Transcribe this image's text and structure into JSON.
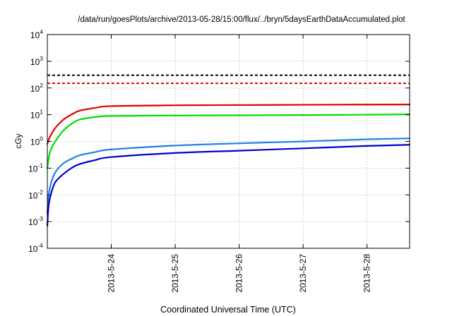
{
  "chart_data": {
    "type": "line",
    "title": "/data/run/goesPlots/archive/2013-05-28/15:00/flux/../bryn/5daysEarthDataAccumulated.plot",
    "xlabel": "Coordinated Universal Time (UTC)",
    "ylabel": "cGy",
    "y_scale": "log",
    "ylim": [
      0.0001,
      10000
    ],
    "xlim": [
      "2013-05-23 00:00",
      "2013-05-28 16:00"
    ],
    "x_ticks": [
      "2013-5-24",
      "2013-5-25",
      "2013-5-26",
      "2013-5-27",
      "2013-5-28"
    ],
    "y_ticks": [
      {
        "value": 0.0001,
        "base": "10",
        "exp": "-4"
      },
      {
        "value": 0.001,
        "base": "10",
        "exp": "-3"
      },
      {
        "value": 0.01,
        "base": "10",
        "exp": "-2"
      },
      {
        "value": 0.1,
        "base": "10",
        "exp": "-1"
      },
      {
        "value": 1,
        "base": "10",
        "exp": "0"
      },
      {
        "value": 10,
        "base": "10",
        "exp": "1"
      },
      {
        "value": 100,
        "base": "10",
        "exp": "2"
      },
      {
        "value": 1000,
        "base": "10",
        "exp": "3"
      },
      {
        "value": 10000,
        "base": "10",
        "exp": "4"
      }
    ],
    "grid": true,
    "legend": false,
    "reference_lines": [
      {
        "value": 300,
        "color": "#000000",
        "style": "dashed"
      },
      {
        "value": 150,
        "color": "#e00000",
        "style": "dashed"
      }
    ],
    "series": [
      {
        "color": "#e00000",
        "x": [
          "2013-05-23 00:00",
          "2013-05-23 01:00",
          "2013-05-23 03:00",
          "2013-05-23 06:00",
          "2013-05-23 09:00",
          "2013-05-23 12:00",
          "2013-05-23 18:00",
          "2013-05-24 00:00",
          "2013-05-25 00:00",
          "2013-05-26 00:00",
          "2013-05-27 00:00",
          "2013-05-28 00:00",
          "2013-05-28 16:00"
        ],
        "y": [
          0.8,
          1.5,
          3.2,
          6.5,
          10,
          14,
          18,
          21,
          22.5,
          23,
          23.5,
          24,
          24.2
        ]
      },
      {
        "color": "#00dd00",
        "x": [
          "2013-05-23 00:00",
          "2013-05-23 01:00",
          "2013-05-23 03:00",
          "2013-05-23 06:00",
          "2013-05-23 09:00",
          "2013-05-23 12:00",
          "2013-05-23 18:00",
          "2013-05-24 00:00",
          "2013-05-25 00:00",
          "2013-05-26 00:00",
          "2013-05-27 00:00",
          "2013-05-28 00:00",
          "2013-05-28 16:00"
        ],
        "y": [
          0.1,
          0.4,
          1.0,
          2.5,
          4.5,
          6.5,
          8.2,
          9.0,
          9.3,
          9.5,
          9.7,
          10.0,
          10.3
        ]
      },
      {
        "color": "#1e82e6",
        "x": [
          "2013-05-23 00:00",
          "2013-05-23 00:30",
          "2013-05-23 01:30",
          "2013-05-23 03:00",
          "2013-05-23 06:00",
          "2013-05-23 09:00",
          "2013-05-23 12:00",
          "2013-05-23 18:00",
          "2013-05-24 00:00",
          "2013-05-25 00:00",
          "2013-05-26 00:00",
          "2013-05-27 00:00",
          "2013-05-28 00:00",
          "2013-05-28 16:00"
        ],
        "y": [
          0.002,
          0.01,
          0.03,
          0.07,
          0.15,
          0.22,
          0.3,
          0.4,
          0.5,
          0.7,
          0.85,
          1.0,
          1.2,
          1.3
        ]
      },
      {
        "color": "#0000cc",
        "x": [
          "2013-05-23 00:00",
          "2013-05-23 00:30",
          "2013-05-23 01:30",
          "2013-05-23 03:00",
          "2013-05-23 06:00",
          "2013-05-23 09:00",
          "2013-05-23 12:00",
          "2013-05-23 18:00",
          "2013-05-24 00:00",
          "2013-05-25 00:00",
          "2013-05-26 00:00",
          "2013-05-27 00:00",
          "2013-05-28 00:00",
          "2013-05-28 16:00"
        ],
        "y": [
          0.0007,
          0.004,
          0.012,
          0.03,
          0.06,
          0.1,
          0.14,
          0.2,
          0.26,
          0.37,
          0.45,
          0.55,
          0.68,
          0.75
        ]
      }
    ]
  }
}
